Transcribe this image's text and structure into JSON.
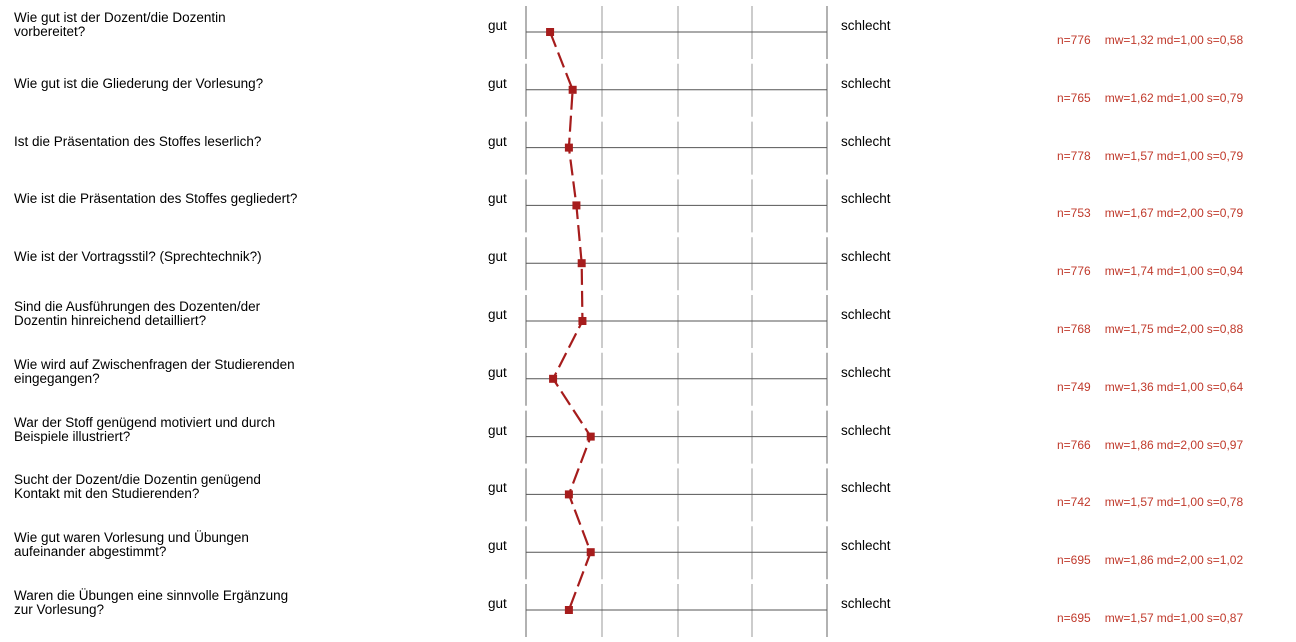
{
  "chart_data": {
    "type": "line",
    "title": "",
    "xlim": [
      1,
      5
    ],
    "left_label": "gut",
    "right_label": "schlecht",
    "marker_color": "#a61c1c",
    "items": [
      {
        "question": "Wie gut ist der Dozent/die Dozentin\nvorbereitet?",
        "mw": 1.32,
        "n": "n=776",
        "mw_label": "mw=1,32",
        "md_label": "md=1,00",
        "s_label": "s=0,58"
      },
      {
        "question": "Wie gut ist die Gliederung der Vorlesung?",
        "mw": 1.62,
        "n": "n=765",
        "mw_label": "mw=1,62",
        "md_label": "md=1,00",
        "s_label": "s=0,79"
      },
      {
        "question": "Ist die Präsentation des Stoffes  leserlich?",
        "mw": 1.57,
        "n": "n=778",
        "mw_label": "mw=1,57",
        "md_label": "md=1,00",
        "s_label": "s=0,79"
      },
      {
        "question": "Wie ist die Präsentation des Stoffes gegliedert?",
        "mw": 1.67,
        "n": "n=753",
        "mw_label": "mw=1,67",
        "md_label": "md=2,00",
        "s_label": "s=0,79"
      },
      {
        "question": "Wie ist der Vortragsstil? (Sprechtechnik?)",
        "mw": 1.74,
        "n": "n=776",
        "mw_label": "mw=1,74",
        "md_label": "md=1,00",
        "s_label": "s=0,94"
      },
      {
        "question": "Sind die Ausführungen des Dozenten/der\nDozentin hinreichend detailliert?",
        "mw": 1.75,
        "n": "n=768",
        "mw_label": "mw=1,75",
        "md_label": "md=2,00",
        "s_label": "s=0,88"
      },
      {
        "question": "Wie wird auf Zwischenfragen der Studierenden\neingegangen?",
        "mw": 1.36,
        "n": "n=749",
        "mw_label": "mw=1,36",
        "md_label": "md=1,00",
        "s_label": "s=0,64"
      },
      {
        "question": "War der Stoff genügend motiviert und durch\nBeispiele illustriert?",
        "mw": 1.86,
        "n": "n=766",
        "mw_label": "mw=1,86",
        "md_label": "md=2,00",
        "s_label": "s=0,97"
      },
      {
        "question": "Sucht der Dozent/die Dozentin genügend\nKontakt mit den Studierenden?",
        "mw": 1.57,
        "n": "n=742",
        "mw_label": "mw=1,57",
        "md_label": "md=1,00",
        "s_label": "s=0,78"
      },
      {
        "question": "Wie gut waren Vorlesung und Übungen\naufeinander abgestimmt?",
        "mw": 1.86,
        "n": "n=695",
        "mw_label": "mw=1,86",
        "md_label": "md=2,00",
        "s_label": "s=1,02"
      },
      {
        "question": "Waren die Übungen eine sinnvolle Ergänzung\nzur Vorlesung?",
        "mw": 1.57,
        "n": "n=695",
        "mw_label": "mw=1,57",
        "md_label": "md=1,00",
        "s_label": "s=0,87"
      }
    ]
  }
}
